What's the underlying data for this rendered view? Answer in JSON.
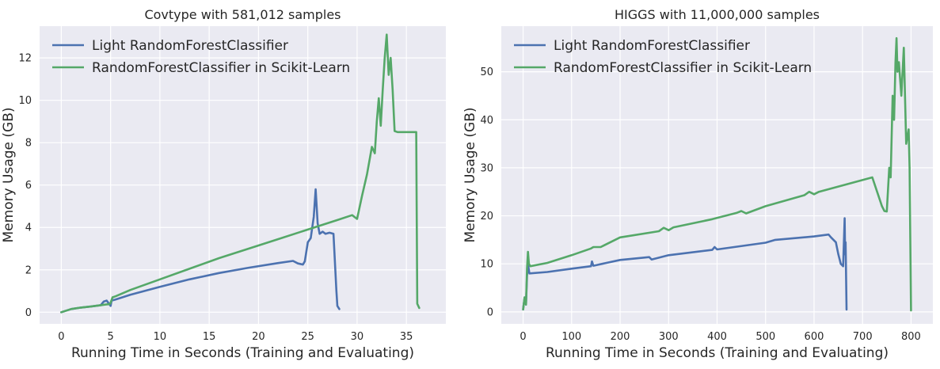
{
  "chart_data": [
    {
      "type": "line",
      "title": "Covtype with 581,012 samples",
      "xlabel": "Running Time in Seconds (Training and Evaluating)",
      "ylabel": "Memory Usage (GB)",
      "xlim": [
        -2.2,
        39.0
      ],
      "ylim": [
        -0.55,
        13.5
      ],
      "xticks": [
        0,
        5,
        10,
        15,
        20,
        25,
        30,
        35
      ],
      "yticks": [
        0,
        2,
        4,
        6,
        8,
        10,
        12
      ],
      "grid": true,
      "legend_position": "top-left",
      "series": [
        {
          "name": "Light RandomForestClassifier",
          "color": "#4c72b0",
          "x": [
            0,
            1,
            2,
            3,
            4,
            4.3,
            4.6,
            5.0,
            5.1,
            5.5,
            7,
            10,
            13,
            16,
            19,
            22,
            23.5,
            24,
            24.5,
            24.7,
            25,
            25.3,
            25.6,
            25.8,
            26.0,
            26.2,
            26.5,
            26.8,
            27.2,
            27.6,
            27.9,
            28.0,
            28.2
          ],
          "y": [
            0.0,
            0.15,
            0.22,
            0.27,
            0.33,
            0.5,
            0.55,
            0.3,
            0.55,
            0.6,
            0.82,
            1.2,
            1.55,
            1.85,
            2.1,
            2.32,
            2.42,
            2.3,
            2.25,
            2.4,
            3.3,
            3.5,
            4.5,
            5.8,
            4.2,
            3.7,
            3.8,
            3.7,
            3.75,
            3.7,
            1.0,
            0.3,
            0.15
          ]
        },
        {
          "name": "RandomForestClassifier in Scikit-Learn",
          "color": "#55a868",
          "x": [
            0,
            1,
            2,
            3,
            4,
            4.5,
            4.9,
            5.0,
            5.2,
            5.5,
            7,
            10,
            13,
            16,
            19,
            22,
            25,
            28,
            29.5,
            30.0,
            30.5,
            31.0,
            31.5,
            31.8,
            32.0,
            32.2,
            32.4,
            32.6,
            32.8,
            33.0,
            33.2,
            33.4,
            33.6,
            33.8,
            34.1,
            34.5,
            35.0,
            35.5,
            36.0,
            36.1,
            36.3
          ],
          "y": [
            0.0,
            0.15,
            0.22,
            0.27,
            0.33,
            0.36,
            0.38,
            0.45,
            0.7,
            0.75,
            1.05,
            1.55,
            2.05,
            2.55,
            3.0,
            3.45,
            3.9,
            4.35,
            4.58,
            4.4,
            5.5,
            6.5,
            7.8,
            7.5,
            9.0,
            10.1,
            8.8,
            10.5,
            12.0,
            13.1,
            11.2,
            12.0,
            10.5,
            8.55,
            8.5,
            8.5,
            8.5,
            8.5,
            8.5,
            0.4,
            0.2
          ]
        }
      ]
    },
    {
      "type": "line",
      "title": "HIGGS with 11,000,000 samples",
      "xlabel": "Running Time in Seconds (Training and Evaluating)",
      "ylabel": "Memory Usage (GB)",
      "xlim": [
        -45,
        845
      ],
      "ylim": [
        -2.5,
        59.5
      ],
      "xticks": [
        0,
        100,
        200,
        300,
        400,
        500,
        600,
        700,
        800
      ],
      "yticks": [
        0,
        10,
        20,
        30,
        40,
        50
      ],
      "grid": true,
      "legend_position": "top-left",
      "series": [
        {
          "name": "Light RandomForestClassifier",
          "color": "#4c72b0",
          "x": [
            0,
            3,
            6,
            8,
            10,
            13,
            50,
            100,
            140,
            142,
            145,
            200,
            260,
            265,
            300,
            390,
            395,
            400,
            500,
            520,
            600,
            630,
            635,
            645,
            650,
            655,
            660,
            663,
            664,
            665,
            667
          ],
          "y": [
            0.5,
            3,
            1.5,
            7.5,
            10,
            8.0,
            8.3,
            9.0,
            9.5,
            10.5,
            9.6,
            10.8,
            11.4,
            10.9,
            11.8,
            12.9,
            13.5,
            13.0,
            14.4,
            15.0,
            15.7,
            16.1,
            15.5,
            14.5,
            12.0,
            10.0,
            9.5,
            19.5,
            12.0,
            14.5,
            0.5
          ]
        },
        {
          "name": "RandomForestClassifier in Scikit-Learn",
          "color": "#55a868",
          "x": [
            0,
            3,
            6,
            8,
            10,
            12,
            15,
            50,
            100,
            140,
            145,
            160,
            200,
            280,
            290,
            300,
            310,
            390,
            440,
            450,
            460,
            500,
            580,
            590,
            600,
            610,
            720,
            730,
            740,
            745,
            750,
            755,
            758,
            762,
            765,
            768,
            770,
            772,
            775,
            780,
            785,
            790,
            795,
            797,
            800
          ],
          "y": [
            0.5,
            3,
            1.5,
            9,
            12.5,
            10,
            9.5,
            10.2,
            11.8,
            13.2,
            13.5,
            13.5,
            15.5,
            16.8,
            17.5,
            17.0,
            17.6,
            19.3,
            20.6,
            21.0,
            20.5,
            22.0,
            24.3,
            25.0,
            24.5,
            25.0,
            28.0,
            25.0,
            22.0,
            21.0,
            20.9,
            30.0,
            28.0,
            45.0,
            40.0,
            52.0,
            57.0,
            50.0,
            52.0,
            45.0,
            55.0,
            35.0,
            38.0,
            30.0,
            0.3
          ]
        }
      ]
    }
  ]
}
